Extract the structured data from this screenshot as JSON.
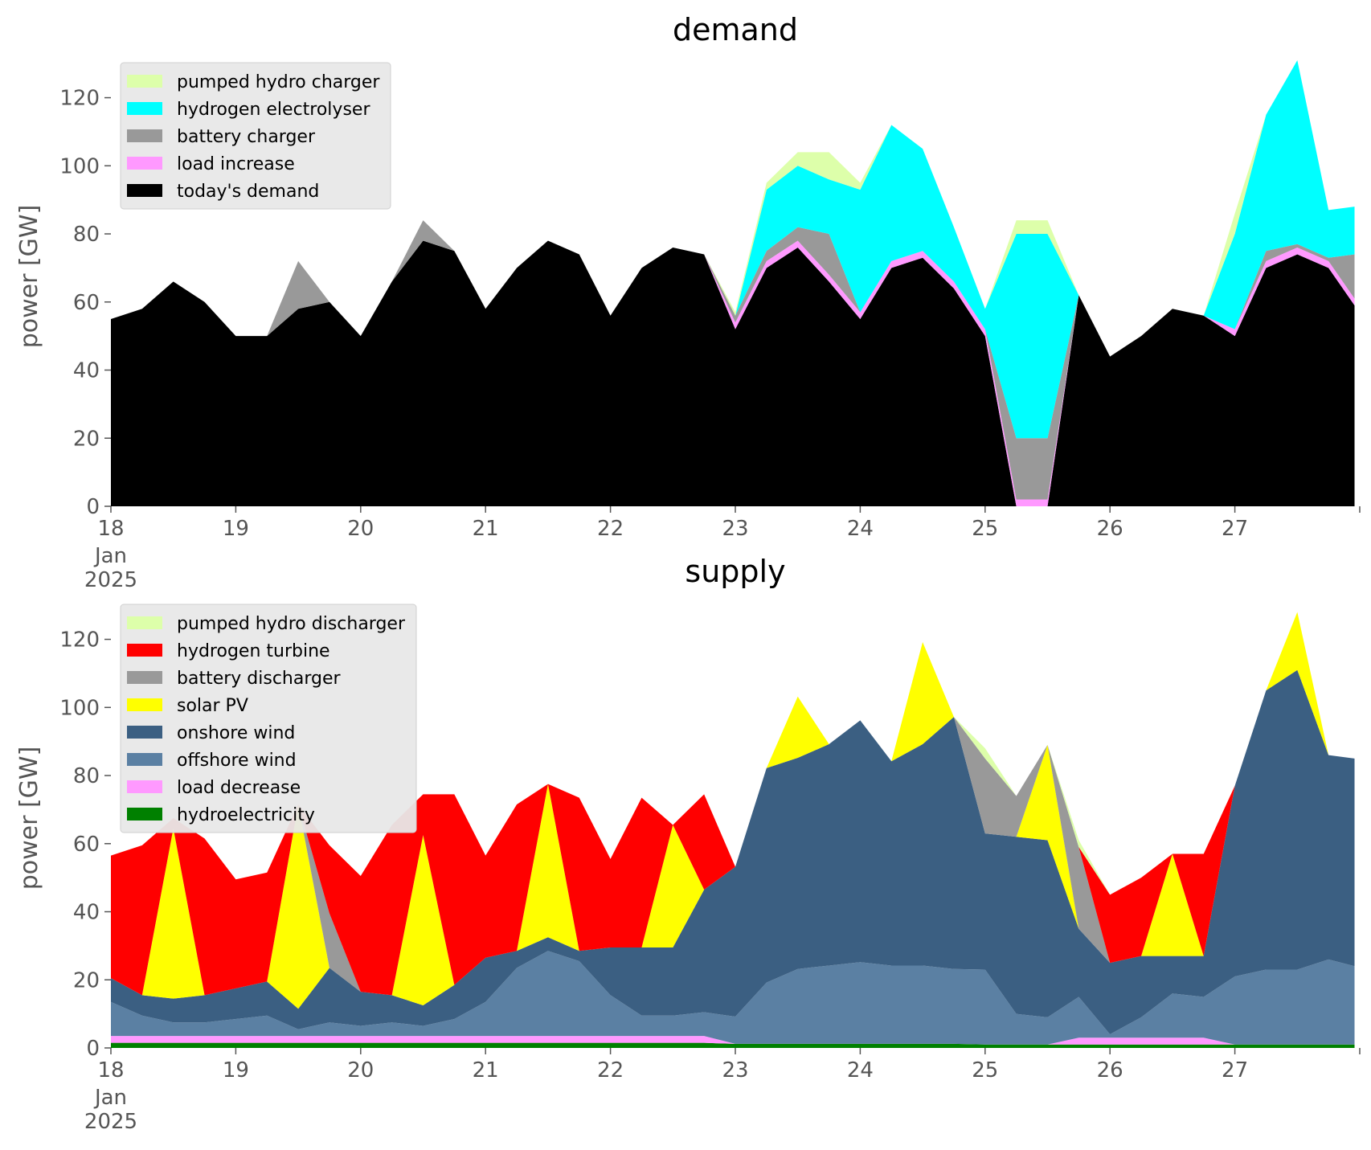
{
  "chart_data": [
    {
      "type": "area",
      "title": "demand",
      "ylabel": "power [GW]",
      "xlabel": "",
      "ylim": [
        0,
        135
      ],
      "yticks": [
        0,
        20,
        40,
        60,
        80,
        100,
        120
      ],
      "x": [
        "2025-01-18T00:00",
        "2025-01-18T06:00",
        "2025-01-18T12:00",
        "2025-01-18T18:00",
        "2025-01-19T00:00",
        "2025-01-19T06:00",
        "2025-01-19T12:00",
        "2025-01-19T18:00",
        "2025-01-20T00:00",
        "2025-01-20T06:00",
        "2025-01-20T12:00",
        "2025-01-20T18:00",
        "2025-01-21T00:00",
        "2025-01-21T06:00",
        "2025-01-21T12:00",
        "2025-01-21T18:00",
        "2025-01-22T00:00",
        "2025-01-22T06:00",
        "2025-01-22T12:00",
        "2025-01-22T18:00",
        "2025-01-23T00:00",
        "2025-01-23T06:00",
        "2025-01-23T12:00",
        "2025-01-23T18:00",
        "2025-01-24T00:00",
        "2025-01-24T06:00",
        "2025-01-24T12:00",
        "2025-01-24T18:00",
        "2025-01-25T00:00",
        "2025-01-25T06:00",
        "2025-01-25T12:00",
        "2025-01-25T18:00",
        "2025-01-26T00:00",
        "2025-01-26T06:00",
        "2025-01-26T12:00",
        "2025-01-26T18:00",
        "2025-01-27T00:00",
        "2025-01-27T06:00",
        "2025-01-27T12:00",
        "2025-01-27T18:00",
        "2025-01-27T23:00"
      ],
      "xticks": [
        {
          "label": "18",
          "sub": "Jan",
          "sub2": "2025",
          "x": "2025-01-18T00:00"
        },
        {
          "label": "19",
          "x": "2025-01-19T00:00"
        },
        {
          "label": "20",
          "x": "2025-01-20T00:00"
        },
        {
          "label": "21",
          "x": "2025-01-21T00:00"
        },
        {
          "label": "22",
          "x": "2025-01-22T00:00"
        },
        {
          "label": "23",
          "x": "2025-01-23T00:00"
        },
        {
          "label": "24",
          "x": "2025-01-24T00:00"
        },
        {
          "label": "25",
          "x": "2025-01-25T00:00"
        },
        {
          "label": "26",
          "x": "2025-01-26T00:00"
        },
        {
          "label": "27",
          "x": "2025-01-27T00:00"
        }
      ],
      "legend_placement": "upper-left",
      "series": [
        {
          "name": "today's demand",
          "color": "#000000",
          "values": [
            55,
            58,
            66,
            60,
            50,
            50,
            58,
            60,
            50,
            66,
            78,
            75,
            58,
            70,
            78,
            74,
            56,
            70,
            76,
            74,
            52,
            70,
            76,
            66,
            55,
            70,
            73,
            64,
            50,
            0,
            0,
            62,
            44,
            50,
            58,
            56,
            50,
            70,
            74,
            70,
            59
          ]
        },
        {
          "name": "load increase",
          "color": "#ff99ff",
          "values": [
            0,
            0,
            0,
            0,
            0,
            0,
            0,
            0,
            0,
            0,
            0,
            0,
            0,
            0,
            0,
            0,
            0,
            0,
            0,
            0,
            2,
            2,
            2,
            2,
            2,
            2,
            2,
            2,
            2,
            2,
            2,
            0,
            0,
            0,
            0,
            0,
            2,
            2,
            2,
            2,
            2
          ]
        },
        {
          "name": "battery charger",
          "color": "#999999",
          "values": [
            0,
            0,
            0,
            0,
            0,
            0,
            14,
            0,
            0,
            0,
            6,
            0,
            0,
            0,
            0,
            0,
            0,
            0,
            0,
            0,
            2,
            3,
            4,
            12,
            0,
            0,
            0,
            0,
            0,
            18,
            18,
            0,
            0,
            0,
            0,
            0,
            0,
            3,
            1,
            1,
            13
          ]
        },
        {
          "name": "hydrogen electrolyser",
          "color": "#00ffff",
          "values": [
            0,
            0,
            0,
            0,
            0,
            0,
            0,
            0,
            0,
            0,
            0,
            0,
            0,
            0,
            0,
            0,
            0,
            0,
            0,
            0,
            0,
            18,
            18,
            16,
            36,
            40,
            30,
            16,
            6,
            60,
            60,
            0,
            0,
            0,
            0,
            0,
            28,
            40,
            54,
            14,
            14
          ]
        },
        {
          "name": "pumped hydro charger",
          "color": "#ddffaa",
          "values": [
            0,
            0,
            0,
            0,
            0,
            0,
            0,
            0,
            0,
            0,
            0,
            0,
            0,
            0,
            0,
            0,
            0,
            0,
            0,
            0,
            1,
            2,
            4,
            8,
            2,
            0,
            0,
            0,
            0,
            4,
            4,
            0,
            0,
            0,
            0,
            0,
            6,
            0,
            0,
            0,
            0
          ]
        }
      ]
    },
    {
      "type": "area",
      "title": "supply",
      "ylabel": "power [GW]",
      "xlabel": "",
      "ylim": [
        0,
        135
      ],
      "yticks": [
        0,
        20,
        40,
        60,
        80,
        100,
        120
      ],
      "x": [
        "2025-01-18T00:00",
        "2025-01-18T06:00",
        "2025-01-18T12:00",
        "2025-01-18T18:00",
        "2025-01-19T00:00",
        "2025-01-19T06:00",
        "2025-01-19T12:00",
        "2025-01-19T18:00",
        "2025-01-20T00:00",
        "2025-01-20T06:00",
        "2025-01-20T12:00",
        "2025-01-20T18:00",
        "2025-01-21T00:00",
        "2025-01-21T06:00",
        "2025-01-21T12:00",
        "2025-01-21T18:00",
        "2025-01-22T00:00",
        "2025-01-22T06:00",
        "2025-01-22T12:00",
        "2025-01-22T18:00",
        "2025-01-23T00:00",
        "2025-01-23T06:00",
        "2025-01-23T12:00",
        "2025-01-23T18:00",
        "2025-01-24T00:00",
        "2025-01-24T06:00",
        "2025-01-24T12:00",
        "2025-01-24T18:00",
        "2025-01-25T00:00",
        "2025-01-25T06:00",
        "2025-01-25T12:00",
        "2025-01-25T18:00",
        "2025-01-26T00:00",
        "2025-01-26T06:00",
        "2025-01-26T12:00",
        "2025-01-26T18:00",
        "2025-01-27T00:00",
        "2025-01-27T06:00",
        "2025-01-27T12:00",
        "2025-01-27T18:00",
        "2025-01-27T23:00"
      ],
      "xticks": [
        {
          "label": "18",
          "sub": "Jan",
          "sub2": "2025",
          "x": "2025-01-18T00:00"
        },
        {
          "label": "19",
          "x": "2025-01-19T00:00"
        },
        {
          "label": "20",
          "x": "2025-01-20T00:00"
        },
        {
          "label": "21",
          "x": "2025-01-21T00:00"
        },
        {
          "label": "22",
          "x": "2025-01-22T00:00"
        },
        {
          "label": "23",
          "x": "2025-01-23T00:00"
        },
        {
          "label": "24",
          "x": "2025-01-24T00:00"
        },
        {
          "label": "25",
          "x": "2025-01-25T00:00"
        },
        {
          "label": "26",
          "x": "2025-01-26T00:00"
        },
        {
          "label": "27",
          "x": "2025-01-27T00:00"
        }
      ],
      "legend_placement": "upper-left",
      "series": [
        {
          "name": "hydroelectricity",
          "color": "#008000",
          "values": [
            1.5,
            1.5,
            1.5,
            1.5,
            1.5,
            1.5,
            1.5,
            1.5,
            1.5,
            1.5,
            1.5,
            1.5,
            1.5,
            1.5,
            1.5,
            1.5,
            1.5,
            1.5,
            1.5,
            1.5,
            1.2,
            1.2,
            1.2,
            1.2,
            1.2,
            1.2,
            1.2,
            1.2,
            1,
            1,
            1,
            1,
            1,
            1,
            1,
            1,
            1,
            1,
            1,
            1,
            1
          ]
        },
        {
          "name": "load decrease",
          "color": "#ff99ff",
          "values": [
            2,
            2,
            2,
            2,
            2,
            2,
            2,
            2,
            2,
            2,
            2,
            2,
            2,
            2,
            2,
            2,
            2,
            2,
            2,
            2,
            0,
            0,
            0,
            0,
            0,
            0,
            0,
            0,
            0,
            0,
            0,
            2,
            2,
            2,
            2,
            2,
            0,
            0,
            0,
            0,
            0
          ]
        },
        {
          "name": "offshore wind",
          "color": "#5b80a3",
          "values": [
            10,
            6,
            4,
            4,
            5,
            6,
            2,
            4,
            3,
            4,
            3,
            5,
            10,
            20,
            25,
            22,
            12,
            6,
            6,
            7,
            8,
            18,
            22,
            23,
            24,
            23,
            23,
            22,
            22,
            9,
            8,
            12,
            1,
            6,
            13,
            12,
            20,
            22,
            22,
            25,
            23
          ]
        },
        {
          "name": "onshore wind",
          "color": "#3b5f82",
          "values": [
            7,
            6,
            7,
            8,
            9,
            10,
            6,
            16,
            10,
            8,
            6,
            10,
            13,
            5,
            4,
            3,
            14,
            20,
            20,
            36,
            44,
            63,
            62,
            65,
            71,
            60,
            65,
            74,
            40,
            52,
            52,
            20,
            21,
            18,
            11,
            12,
            56,
            82,
            88,
            60,
            61
          ]
        },
        {
          "name": "solar PV",
          "color": "#ffff00",
          "values": [
            0,
            0,
            50,
            0,
            0,
            0,
            60,
            0,
            0,
            0,
            50,
            0,
            0,
            0,
            45,
            0,
            0,
            0,
            36,
            0,
            0,
            0,
            18,
            0,
            0,
            0,
            30,
            0,
            0,
            0,
            28,
            0,
            0,
            0,
            30,
            0,
            0,
            0,
            17,
            0,
            0
          ]
        },
        {
          "name": "battery discharger",
          "color": "#999999",
          "values": [
            0,
            0,
            0,
            0,
            0,
            0,
            0,
            16,
            0,
            0,
            0,
            0,
            0,
            0,
            0,
            0,
            0,
            0,
            0,
            0,
            0,
            0,
            0,
            0,
            0,
            0,
            0,
            0,
            22,
            12,
            0,
            24,
            0,
            0,
            0,
            0,
            0,
            0,
            0,
            0,
            0
          ]
        },
        {
          "name": "hydrogen turbine",
          "color": "#ff0000",
          "values": [
            36,
            44,
            3,
            46,
            32,
            32,
            0,
            20,
            34,
            50,
            12,
            56,
            30,
            43,
            0,
            45,
            26,
            44,
            0,
            28,
            0,
            0,
            0,
            0,
            0,
            0,
            0,
            0,
            0,
            0,
            0,
            0,
            20,
            23,
            0,
            30,
            0,
            0,
            0,
            0,
            0
          ]
        },
        {
          "name": "pumped hydro discharger",
          "color": "#ddffaa",
          "values": [
            0,
            0,
            0,
            0,
            0,
            0,
            0,
            0,
            0,
            0,
            0,
            0,
            0,
            0,
            0,
            0,
            0,
            0,
            0,
            0,
            0,
            0,
            0,
            0,
            0,
            0,
            0,
            0,
            3,
            0,
            0,
            2,
            0,
            0,
            0,
            0,
            0,
            0,
            0,
            0,
            0
          ]
        }
      ]
    }
  ]
}
